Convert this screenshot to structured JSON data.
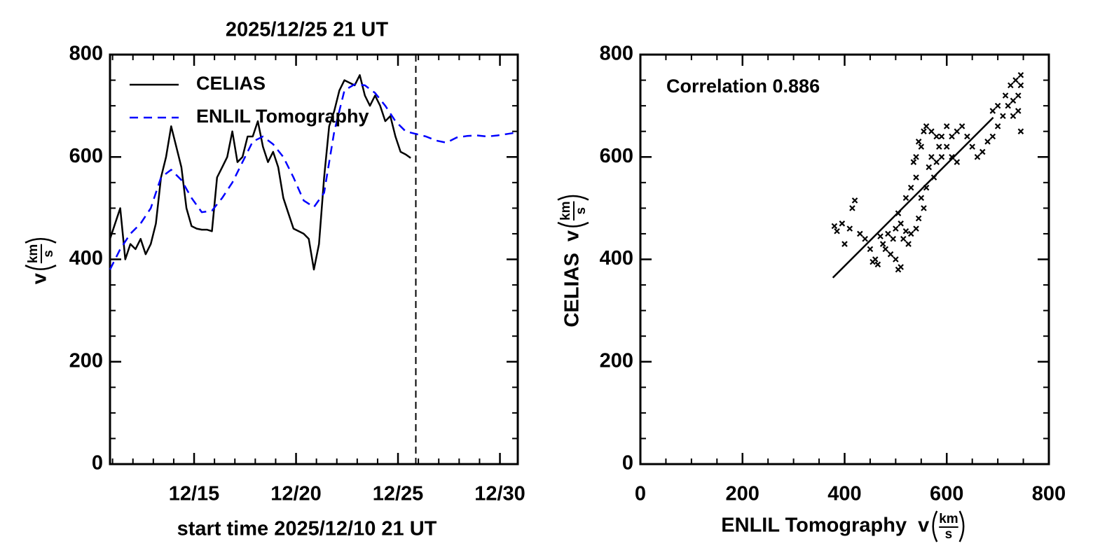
{
  "chart_data": [
    {
      "type": "line",
      "title": "2025/12/25 21 UT",
      "xlabel": "start time 2025/12/10 21 UT",
      "ylabel": {
        "symbol": "v",
        "num": "km",
        "den": "s"
      },
      "xlim": [
        0,
        20
      ],
      "ylim": [
        0,
        800
      ],
      "xticks": [
        {
          "value": 4.125,
          "label": "12/15"
        },
        {
          "value": 9.125,
          "label": "12/20"
        },
        {
          "value": 14.125,
          "label": "12/25"
        },
        {
          "value": 19.125,
          "label": "12/30"
        }
      ],
      "yticks": [
        0,
        200,
        400,
        600,
        800
      ],
      "vline": 15,
      "legend": "upper left",
      "series": [
        {
          "name": "CELIAS",
          "color": "#000000",
          "dash": false,
          "x": [
            0,
            0.25,
            0.5,
            0.75,
            1,
            1.25,
            1.5,
            1.75,
            2,
            2.25,
            2.5,
            2.75,
            3,
            3.25,
            3.5,
            3.75,
            4,
            4.25,
            4.5,
            4.75,
            5,
            5.25,
            5.5,
            5.75,
            6,
            6.25,
            6.5,
            6.75,
            7,
            7.25,
            7.5,
            7.75,
            8,
            8.25,
            8.5,
            8.75,
            9,
            9.25,
            9.5,
            9.75,
            10,
            10.25,
            10.5,
            10.75,
            11,
            11.25,
            11.5,
            11.75,
            12,
            12.25,
            12.5,
            12.75,
            13,
            13.25,
            13.5,
            13.75,
            14,
            14.25,
            14.5,
            14.75
          ],
          "values": [
            440,
            470,
            500,
            400,
            430,
            420,
            440,
            410,
            430,
            470,
            560,
            600,
            660,
            620,
            580,
            500,
            465,
            460,
            458,
            458,
            455,
            560,
            580,
            600,
            650,
            590,
            600,
            640,
            640,
            670,
            620,
            590,
            610,
            580,
            520,
            490,
            460,
            455,
            450,
            440,
            380,
            430,
            560,
            660,
            690,
            730,
            750,
            745,
            740,
            760,
            720,
            700,
            720,
            700,
            670,
            680,
            640,
            610,
            605,
            598
          ]
        },
        {
          "name": "ENLIL Tomography",
          "color": "#0000ff",
          "dash": true,
          "x": [
            0,
            0.5,
            1,
            1.5,
            2,
            2.5,
            3,
            3.5,
            4,
            4.5,
            5,
            5.5,
            6,
            6.5,
            7,
            7.5,
            8,
            8.5,
            9,
            9.5,
            10,
            10.5,
            11,
            11.5,
            12,
            12.5,
            13,
            13.5,
            14,
            14.5,
            15,
            15.5,
            16,
            16.5,
            17,
            17.5,
            18,
            18.5,
            19,
            19.5,
            20
          ],
          "values": [
            380,
            420,
            450,
            470,
            500,
            560,
            575,
            555,
            520,
            492,
            495,
            520,
            550,
            590,
            630,
            640,
            625,
            600,
            560,
            515,
            502,
            530,
            650,
            730,
            742,
            740,
            725,
            700,
            670,
            650,
            645,
            640,
            632,
            628,
            638,
            641,
            642,
            640,
            642,
            645,
            648
          ]
        }
      ]
    },
    {
      "type": "scatter",
      "xlabel": {
        "prefix": "ENLIL Tomography",
        "symbol": "v",
        "num": "km",
        "den": "s"
      },
      "ylabel": {
        "prefix": "CELIAS",
        "symbol": "v",
        "num": "km",
        "den": "s"
      },
      "annotation": "Correlation 0.886",
      "xlim": [
        0,
        800
      ],
      "ylim": [
        0,
        800
      ],
      "xticks": [
        0,
        200,
        400,
        600,
        800
      ],
      "yticks": [
        0,
        200,
        400,
        600,
        800
      ],
      "color": "#000000",
      "x": [
        380,
        385,
        395,
        400,
        410,
        420,
        415,
        430,
        440,
        450,
        455,
        460,
        465,
        470,
        475,
        480,
        490,
        500,
        505,
        510,
        500,
        510,
        520,
        530,
        540,
        525,
        515,
        495,
        485,
        505,
        520,
        530,
        540,
        545,
        550,
        555,
        560,
        565,
        570,
        575,
        580,
        585,
        590,
        600,
        610,
        620,
        630,
        640,
        650,
        660,
        670,
        680,
        690,
        560,
        570,
        580,
        550,
        540,
        535,
        545,
        555,
        600,
        610,
        620,
        590,
        700,
        710,
        720,
        730,
        740,
        745,
        745,
        735,
        725,
        715,
        700,
        690,
        740,
        745,
        730
      ],
      "y": [
        465,
        455,
        470,
        430,
        460,
        515,
        500,
        450,
        440,
        420,
        395,
        400,
        390,
        445,
        430,
        420,
        410,
        400,
        380,
        385,
        460,
        470,
        455,
        450,
        460,
        430,
        440,
        440,
        450,
        490,
        520,
        540,
        560,
        480,
        520,
        500,
        540,
        580,
        600,
        560,
        590,
        620,
        640,
        620,
        640,
        650,
        660,
        640,
        620,
        600,
        610,
        630,
        640,
        660,
        650,
        640,
        620,
        600,
        590,
        630,
        650,
        660,
        600,
        590,
        600,
        660,
        680,
        700,
        710,
        720,
        740,
        760,
        750,
        740,
        720,
        700,
        690,
        690,
        650,
        680
      ],
      "fit_line": {
        "x": [
          377,
          691
        ],
        "y": [
          364,
          677
        ]
      }
    }
  ]
}
